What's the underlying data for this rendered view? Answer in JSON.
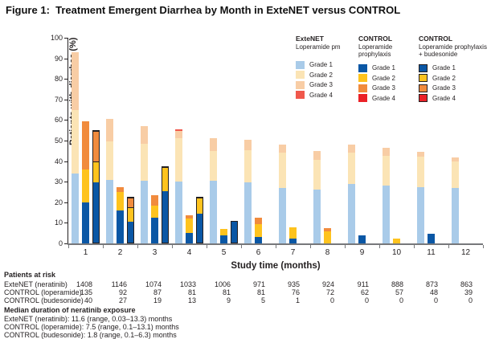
{
  "title": "Figure 1:  Treatment Emergent Diarrhea by Month in ExteNET versus CONTROL",
  "chart_data": {
    "type": "bar",
    "stacked": true,
    "xlabel": "Study time (months)",
    "ylabel": "Patients with diarrhea (%)",
    "ylim": [
      0,
      100
    ],
    "y_ticks": [
      0,
      10,
      20,
      30,
      40,
      50,
      60,
      70,
      80,
      90,
      100
    ],
    "categories": [
      "1",
      "2",
      "3",
      "4",
      "5",
      "6",
      "7",
      "8",
      "9",
      "10",
      "11",
      "12"
    ],
    "grade_labels": [
      "Grade 1",
      "Grade 2",
      "Grade 3",
      "Grade 4"
    ],
    "legend_position": "top-right",
    "grid": false,
    "series": [
      {
        "name": "ExteNET",
        "subtitle": "Loperamide pm",
        "outlined": false,
        "colors": [
          "#a9cbe9",
          "#fbe4b5",
          "#f8cda5",
          "#f0584c"
        ],
        "values": [
          [
            34,
            31,
            28,
            0
          ],
          [
            31,
            18.5,
            11,
            0
          ],
          [
            30.5,
            18,
            8.5,
            0
          ],
          [
            30,
            21,
            3.5,
            1
          ],
          [
            30.5,
            14.5,
            6,
            0
          ],
          [
            29.5,
            16,
            5,
            0
          ],
          [
            27,
            17,
            4,
            0
          ],
          [
            26,
            14.5,
            4.5,
            0
          ],
          [
            29,
            15,
            4,
            0
          ],
          [
            28,
            14.5,
            4,
            0
          ],
          [
            27.5,
            14.5,
            2.5,
            0
          ],
          [
            27,
            13,
            2,
            0
          ]
        ]
      },
      {
        "name": "CONTROL",
        "subtitle": "Loperamide prophylaxis",
        "outlined": false,
        "colors": [
          "#0a57a5",
          "#fec31e",
          "#f18b3d",
          "#eb2127"
        ],
        "values": [
          [
            20,
            16,
            23.5,
            0
          ],
          [
            16,
            9,
            2.5,
            0
          ],
          [
            12.5,
            6,
            5,
            0
          ],
          [
            5,
            7,
            1.5,
            0
          ],
          [
            4,
            3,
            0,
            0
          ],
          [
            3,
            6.5,
            3,
            0
          ],
          [
            2.5,
            5.5,
            0,
            0
          ],
          [
            0,
            6,
            1.5,
            0
          ],
          [
            4,
            0,
            0,
            0
          ],
          [
            0,
            2.5,
            0,
            0
          ],
          [
            4.5,
            0,
            0,
            0
          ],
          [
            0,
            0,
            0,
            0
          ]
        ]
      },
      {
        "name": "CONTROL",
        "subtitle": "Loperamide prophylaxis + budesonide",
        "outlined": true,
        "colors": [
          "#0a57a5",
          "#fec31e",
          "#f18b3d",
          "#eb2127"
        ],
        "values": [
          [
            30,
            10,
            15,
            0
          ],
          [
            11,
            7,
            4.5,
            0
          ],
          [
            26,
            11.5,
            0,
            0
          ],
          [
            15,
            7.5,
            0,
            0
          ],
          [
            11,
            0,
            0,
            0
          ],
          [
            0,
            0,
            0,
            0
          ],
          [
            0,
            0,
            0,
            0
          ],
          [
            0,
            0,
            0,
            0
          ],
          [
            0,
            0,
            0,
            0
          ],
          [
            0,
            0,
            0,
            0
          ],
          [
            0,
            0,
            0,
            0
          ],
          [
            0,
            0,
            0,
            0
          ]
        ]
      }
    ]
  },
  "at_risk": {
    "heading": "Patients at risk",
    "rows": [
      {
        "label": "ExteNET (neratinib)",
        "values": [
          "1408",
          "1146",
          "1074",
          "1033",
          "1006",
          "971",
          "935",
          "924",
          "911",
          "888",
          "873",
          "863"
        ]
      },
      {
        "label": "CONTROL (loperamide)",
        "values": [
          "135",
          "92",
          "87",
          "81",
          "81",
          "81",
          "76",
          "72",
          "62",
          "57",
          "48",
          "39"
        ]
      },
      {
        "label": "CONTROL (budesonide)",
        "values": [
          "40",
          "27",
          "19",
          "13",
          "9",
          "5",
          "1",
          "0",
          "0",
          "0",
          "0",
          "0"
        ]
      }
    ]
  },
  "median_duration": {
    "heading": "Median duration of neratinib exposure",
    "lines": [
      "ExteNET (neratinib): 11.6 (range, 0.03–13.3) months",
      "CONTROL (loperamide): 7.5 (range, 0.1–13.1) months",
      "CONTROL (budesonide): 1.8 (range, 0.1–6.3) months"
    ]
  },
  "colors": {
    "axis_gray": "#77787b",
    "text": "#231f20",
    "extenet_grade1": "#a9cbe9",
    "extenet_grade2": "#fbe4b5",
    "extenet_grade3": "#f8cda5",
    "extenet_grade4": "#f0584c",
    "control_grade1": "#0a57a5",
    "control_grade2": "#fec31e",
    "control_grade3": "#f18b3d",
    "control_grade4": "#eb2127"
  }
}
